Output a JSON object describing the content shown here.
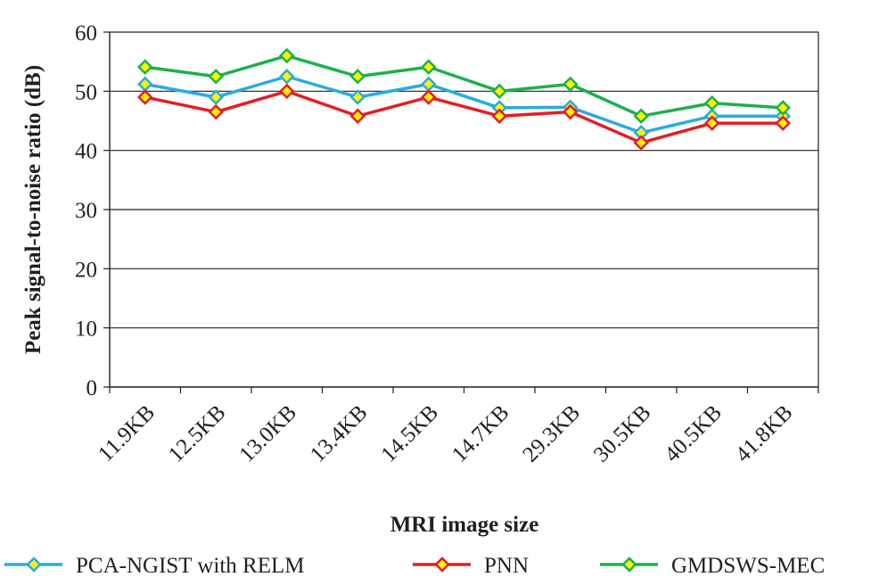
{
  "chart_data": {
    "type": "line",
    "title": "",
    "xlabel": "MRI image size",
    "ylabel": "Peak signal-to-noise ratio (dB)",
    "ylim": [
      0,
      60
    ],
    "yticks": [
      0,
      10,
      20,
      30,
      40,
      50,
      60
    ],
    "grid": true,
    "legend_position": "bottom",
    "categories": [
      "11.9KB",
      "12.5KB",
      "13.0KB",
      "13.4KB",
      "14.5KB",
      "14.7KB",
      "29.3KB",
      "30.5KB",
      "40.5KB",
      "41.8KB"
    ],
    "series": [
      {
        "name": "PCA-NGIST with RELM",
        "line_color": "#29abe2",
        "marker_fill": "#fff200",
        "values": [
          51.2,
          49.0,
          52.5,
          49.0,
          51.2,
          47.2,
          47.3,
          43.0,
          45.8,
          45.8
        ]
      },
      {
        "name": "PNN",
        "line_color": "#e31e24",
        "marker_fill": "#fff200",
        "values": [
          49.0,
          46.5,
          50.0,
          45.8,
          49.0,
          45.8,
          46.5,
          41.3,
          44.6,
          44.6
        ]
      },
      {
        "name": "GMDSWS-MEC",
        "line_color": "#1db04b",
        "marker_fill": "#fff200",
        "values": [
          54.1,
          52.5,
          56.0,
          52.5,
          54.1,
          50.0,
          51.2,
          45.8,
          48.0,
          47.2
        ]
      }
    ]
  }
}
